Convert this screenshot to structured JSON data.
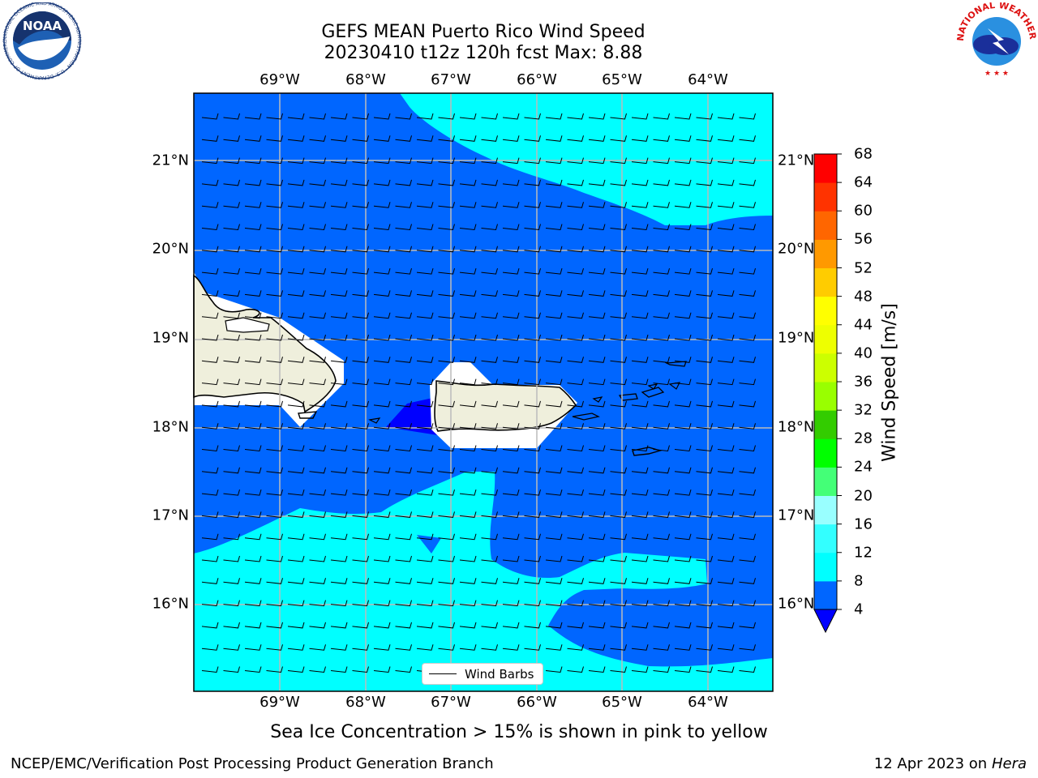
{
  "title": {
    "line1": "GEFS MEAN Puerto Rico Wind Speed",
    "line2": "20230410 t12z 120h fcst   Max: 8.88"
  },
  "axes": {
    "lon_labels": [
      "69°W",
      "68°W",
      "67°W",
      "66°W",
      "65°W",
      "64°W"
    ],
    "lat_labels": [
      "21°N",
      "20°N",
      "19°N",
      "18°N",
      "17°N",
      "16°N"
    ]
  },
  "colorbar": {
    "label": "Wind Speed [m/s]",
    "ticks": [
      "4",
      "8",
      "12",
      "16",
      "20",
      "24",
      "28",
      "32",
      "36",
      "40",
      "44",
      "48",
      "52",
      "56",
      "60",
      "64",
      "68"
    ],
    "colors": [
      "#0000ff",
      "#0066ff",
      "#00ffff",
      "#33ffff",
      "#99ffff",
      "#44ff77",
      "#00ff00",
      "#33cc00",
      "#99ff00",
      "#ccff00",
      "#eeff00",
      "#ffff00",
      "#ffcc00",
      "#ff9900",
      "#ff6600",
      "#ff3300",
      "#ff0000"
    ],
    "under_color": "#0000ff"
  },
  "legend": {
    "label": "Wind Barbs"
  },
  "subtitle": "Sea Ice Concentration > 15% is shown in pink to yellow",
  "footer": {
    "left": "NCEP/EMC/Verification Post Processing Product Generation Branch",
    "right_prefix": "12 Apr 2023 on ",
    "right_italic": "Hera"
  },
  "logos": {
    "noaa": "NOAA",
    "noaa_ring": "NATIONAL OCEANIC AND ATMOSPHERIC ADMINISTRATION · U.S. DEPARTMENT OF COMMERCE",
    "nws_ring": "NATIONAL WEATHER SERVICE"
  },
  "colors": {
    "band_4_8": "#0066ff",
    "band_8_12": "#00ffff",
    "band_under_4": "#0000ff",
    "land": "#efefdc"
  }
}
